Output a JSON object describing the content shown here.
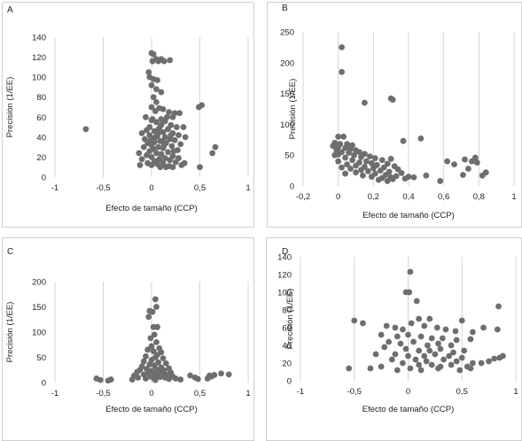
{
  "figure": {
    "panel_letters": [
      "A",
      "B",
      "C",
      "D"
    ]
  },
  "chart_data": [
    {
      "panel": "A",
      "type": "scatter",
      "xlabel": "Efecto de tamaño (CCP)",
      "ylabel": "Precisión (1/EE)",
      "xlim": [
        -1,
        1
      ],
      "ylim": [
        0,
        140
      ],
      "xticks": [
        -1,
        -0.5,
        0,
        0.5,
        1
      ],
      "xtick_labels": [
        "-1",
        "-0,5",
        "0",
        "0,5",
        "1"
      ],
      "yticks": [
        0,
        20,
        40,
        60,
        80,
        100,
        120,
        140
      ],
      "ytick_labels": [
        "0",
        "20",
        "40",
        "60",
        "80",
        "100",
        "120",
        "140"
      ],
      "grid": "vertical",
      "points": [
        [
          -0.68,
          48
        ],
        [
          0.0,
          124
        ],
        [
          0.02,
          123
        ],
        [
          0.05,
          118
        ],
        [
          0.1,
          118
        ],
        [
          0.19,
          117
        ],
        [
          0.01,
          116
        ],
        [
          0.07,
          116
        ],
        [
          0.13,
          116
        ],
        [
          -0.03,
          105
        ],
        [
          -0.02,
          100
        ],
        [
          0.02,
          98
        ],
        [
          0.06,
          97
        ],
        [
          0.0,
          92
        ],
        [
          0.05,
          88
        ],
        [
          0.1,
          85
        ],
        [
          0.02,
          80
        ],
        [
          0.05,
          75
        ],
        [
          0.0,
          70
        ],
        [
          0.08,
          69
        ],
        [
          0.12,
          68
        ],
        [
          0.04,
          66
        ],
        [
          0.18,
          65
        ],
        [
          0.24,
          64
        ],
        [
          0.29,
          64
        ],
        [
          0.22,
          60
        ],
        [
          0.1,
          58
        ],
        [
          0.0,
          57
        ],
        [
          0.14,
          56
        ],
        [
          0.05,
          55
        ],
        [
          0.2,
          52
        ],
        [
          0.26,
          50
        ],
        [
          -0.02,
          50
        ],
        [
          0.08,
          49
        ],
        [
          0.17,
          48
        ],
        [
          -0.05,
          47
        ],
        [
          0.03,
          46
        ],
        [
          0.12,
          45
        ],
        [
          0.22,
          44
        ],
        [
          -0.1,
          44
        ],
        [
          0.28,
          42
        ],
        [
          -0.02,
          42
        ],
        [
          0.06,
          41
        ],
        [
          0.14,
          40
        ],
        [
          0.0,
          39
        ],
        [
          0.19,
          38
        ],
        [
          -0.07,
          38
        ],
        [
          0.24,
          37
        ],
        [
          0.09,
          36
        ],
        [
          0.03,
          35
        ],
        [
          -0.04,
          34
        ],
        [
          0.15,
          34
        ],
        [
          0.3,
          33
        ],
        [
          0.0,
          32
        ],
        [
          0.21,
          31
        ],
        [
          0.07,
          30
        ],
        [
          -0.08,
          30
        ],
        [
          0.12,
          29
        ],
        [
          0.02,
          28
        ],
        [
          0.27,
          27
        ],
        [
          -0.02,
          26
        ],
        [
          0.17,
          25
        ],
        [
          0.05,
          24
        ],
        [
          0.1,
          23
        ],
        [
          -0.05,
          22
        ],
        [
          0.22,
          21
        ],
        [
          0.0,
          20
        ],
        [
          0.14,
          19
        ],
        [
          0.08,
          18
        ],
        [
          -0.1,
          18
        ],
        [
          0.19,
          17
        ],
        [
          0.03,
          16
        ],
        [
          0.25,
          15
        ],
        [
          -0.04,
          14
        ],
        [
          0.12,
          14
        ],
        [
          0.06,
          13
        ],
        [
          0.31,
          12
        ],
        [
          0.0,
          12
        ],
        [
          0.18,
          11
        ],
        [
          0.09,
          10
        ],
        [
          0.15,
          10
        ],
        [
          0.22,
          10
        ],
        [
          -0.13,
          24
        ],
        [
          -0.12,
          12
        ],
        [
          0.49,
          70
        ],
        [
          0.52,
          72
        ],
        [
          0.66,
          30
        ],
        [
          0.63,
          24
        ],
        [
          0.5,
          10
        ],
        [
          0.04,
          40
        ],
        [
          0.1,
          52
        ],
        [
          0.16,
          60
        ],
        [
          0.2,
          42
        ],
        [
          0.01,
          58
        ],
        [
          -0.06,
          60
        ],
        [
          0.33,
          50
        ],
        [
          0.35,
          40
        ],
        [
          0.11,
          36
        ],
        [
          0.07,
          44
        ],
        [
          0.13,
          32
        ],
        [
          0.23,
          26
        ],
        [
          0.28,
          19
        ],
        [
          0.34,
          14
        ],
        [
          -0.01,
          37
        ]
      ]
    },
    {
      "panel": "B",
      "type": "scatter",
      "xlabel": "Efecto de tamaño (CCP)",
      "ylabel": "Precisión (1/EE)",
      "xlim": [
        -0.2,
        1
      ],
      "ylim": [
        0,
        250
      ],
      "xticks": [
        -0.2,
        0,
        0.2,
        0.4,
        0.6,
        0.8,
        1
      ],
      "xtick_labels": [
        "-0,2",
        "0",
        "0,2",
        "0,4",
        "0,6",
        "0,8",
        "1"
      ],
      "yticks": [
        0,
        50,
        100,
        150,
        200,
        250
      ],
      "ytick_labels": [
        "0",
        "50",
        "100",
        "150",
        "200",
        "250"
      ],
      "grid": "vertical",
      "points": [
        [
          0.02,
          225
        ],
        [
          0.02,
          185
        ],
        [
          0.15,
          135
        ],
        [
          0.3,
          142
        ],
        [
          0.31,
          140
        ],
        [
          0.37,
          73
        ],
        [
          0.47,
          77
        ],
        [
          0.0,
          80
        ],
        [
          0.03,
          80
        ],
        [
          -0.02,
          70
        ],
        [
          0.01,
          68
        ],
        [
          0.05,
          68
        ],
        [
          0.08,
          66
        ],
        [
          -0.03,
          65
        ],
        [
          0.0,
          63
        ],
        [
          0.04,
          62
        ],
        [
          0.07,
          60
        ],
        [
          0.1,
          58
        ],
        [
          -0.01,
          58
        ],
        [
          0.12,
          55
        ],
        [
          0.02,
          55
        ],
        [
          0.06,
          54
        ],
        [
          0.15,
          52
        ],
        [
          0.0,
          51
        ],
        [
          0.09,
          50
        ],
        [
          -0.02,
          50
        ],
        [
          0.18,
          48
        ],
        [
          0.13,
          47
        ],
        [
          0.04,
          46
        ],
        [
          0.21,
          45
        ],
        [
          0.3,
          44
        ],
        [
          0.08,
          42
        ],
        [
          0.25,
          42
        ],
        [
          0.16,
          40
        ],
        [
          0.0,
          40
        ],
        [
          0.12,
          38
        ],
        [
          0.19,
          37
        ],
        [
          0.28,
          36
        ],
        [
          0.05,
          35
        ],
        [
          0.22,
          34
        ],
        [
          0.1,
          33
        ],
        [
          0.32,
          32
        ],
        [
          0.15,
          31
        ],
        [
          0.26,
          30
        ],
        [
          0.02,
          30
        ],
        [
          0.2,
          29
        ],
        [
          0.07,
          28
        ],
        [
          0.34,
          27
        ],
        [
          0.13,
          26
        ],
        [
          0.24,
          25
        ],
        [
          0.17,
          24
        ],
        [
          0.29,
          23
        ],
        [
          0.1,
          22
        ],
        [
          0.36,
          21
        ],
        [
          0.04,
          20
        ],
        [
          0.21,
          20
        ],
        [
          0.27,
          18
        ],
        [
          0.14,
          17
        ],
        [
          0.33,
          16
        ],
        [
          0.19,
          15
        ],
        [
          0.3,
          14
        ],
        [
          0.25,
          13
        ],
        [
          0.38,
          12
        ],
        [
          0.31,
          11
        ],
        [
          0.23,
          10
        ],
        [
          0.28,
          8
        ],
        [
          0.4,
          15
        ],
        [
          0.43,
          14
        ],
        [
          0.5,
          17
        ],
        [
          0.58,
          8
        ],
        [
          0.62,
          40
        ],
        [
          0.66,
          35
        ],
        [
          0.72,
          43
        ],
        [
          0.76,
          40
        ],
        [
          0.78,
          46
        ],
        [
          0.79,
          38
        ],
        [
          0.82,
          17
        ],
        [
          0.84,
          22
        ],
        [
          0.74,
          28
        ],
        [
          0.71,
          18
        ]
      ]
    },
    {
      "panel": "C",
      "type": "scatter",
      "xlabel": "Efecto de tamaño (CCP)",
      "ylabel": "Precisión (1/EE)",
      "xlim": [
        -1,
        1
      ],
      "ylim": [
        0,
        200
      ],
      "xticks": [
        -1,
        -0.5,
        0,
        0.5,
        1
      ],
      "xtick_labels": [
        "-1",
        "-0,5",
        "0",
        "0,5",
        "1"
      ],
      "yticks": [
        0,
        50,
        100,
        150,
        200
      ],
      "ytick_labels": [
        "0",
        "50",
        "100",
        "150",
        "200"
      ],
      "grid": "vertical",
      "points": [
        [
          0.04,
          165
        ],
        [
          0.05,
          150
        ],
        [
          -0.02,
          142
        ],
        [
          0.01,
          140
        ],
        [
          -0.03,
          130
        ],
        [
          0.02,
          110
        ],
        [
          0.06,
          110
        ],
        [
          0.03,
          95
        ],
        [
          -0.01,
          88
        ],
        [
          0.05,
          80
        ],
        [
          0.0,
          72
        ],
        [
          0.08,
          68
        ],
        [
          -0.04,
          65
        ],
        [
          0.02,
          62
        ],
        [
          0.1,
          60
        ],
        [
          0.06,
          55
        ],
        [
          -0.06,
          52
        ],
        [
          0.04,
          50
        ],
        [
          0.12,
          48
        ],
        [
          0.0,
          45
        ],
        [
          -0.08,
          42
        ],
        [
          0.07,
          40
        ],
        [
          0.15,
          38
        ],
        [
          -0.02,
          36
        ],
        [
          0.03,
          34
        ],
        [
          -0.1,
          32
        ],
        [
          0.1,
          30
        ],
        [
          0.18,
          28
        ],
        [
          -0.05,
          27
        ],
        [
          0.05,
          26
        ],
        [
          -0.12,
          25
        ],
        [
          0.13,
          24
        ],
        [
          0.0,
          23
        ],
        [
          0.08,
          22
        ],
        [
          -0.15,
          21
        ],
        [
          0.2,
          20
        ],
        [
          -0.03,
          19
        ],
        [
          0.03,
          18
        ],
        [
          0.11,
          17
        ],
        [
          -0.08,
          16
        ],
        [
          0.16,
          15
        ],
        [
          -0.18,
          14
        ],
        [
          0.06,
          13
        ],
        [
          -0.01,
          12
        ],
        [
          0.22,
          12
        ],
        [
          0.09,
          11
        ],
        [
          -0.14,
          10
        ],
        [
          0.14,
          10
        ],
        [
          0.02,
          9
        ],
        [
          -0.06,
          8
        ],
        [
          0.25,
          8
        ],
        [
          0.18,
          7
        ],
        [
          -0.2,
          6
        ],
        [
          0.3,
          6
        ],
        [
          0.04,
          5
        ],
        [
          -0.57,
          8
        ],
        [
          -0.53,
          5
        ],
        [
          -0.45,
          4
        ],
        [
          -0.42,
          6
        ],
        [
          0.4,
          14
        ],
        [
          0.45,
          10
        ],
        [
          0.48,
          7
        ],
        [
          0.58,
          8
        ],
        [
          0.6,
          14
        ],
        [
          0.62,
          12
        ],
        [
          0.65,
          15
        ],
        [
          0.72,
          18
        ],
        [
          0.8,
          16
        ]
      ]
    },
    {
      "panel": "D",
      "type": "scatter",
      "xlabel": "Efecto de tamaño (CCP)",
      "ylabel": "Precisión (1/EE)",
      "xlim": [
        -1,
        1
      ],
      "ylim": [
        0,
        140
      ],
      "xticks": [
        -1,
        -0.5,
        0,
        0.5,
        1
      ],
      "xtick_labels": [
        "-1",
        "-0,5",
        "0",
        "0,5",
        "1"
      ],
      "yticks": [
        0,
        20,
        40,
        60,
        80,
        100,
        120,
        140
      ],
      "ytick_labels": [
        "0",
        "20",
        "40",
        "60",
        "80",
        "100",
        "120",
        "140"
      ],
      "grid": "vertical",
      "points": [
        [
          0.02,
          123
        ],
        [
          -0.02,
          100
        ],
        [
          0.01,
          100
        ],
        [
          0.08,
          90
        ],
        [
          0.84,
          84
        ],
        [
          -0.5,
          68
        ],
        [
          -0.42,
          65
        ],
        [
          0.1,
          70
        ],
        [
          0.2,
          70
        ],
        [
          0.5,
          68
        ],
        [
          0.7,
          60
        ],
        [
          0.83,
          58
        ],
        [
          -0.2,
          62
        ],
        [
          -0.12,
          60
        ],
        [
          -0.05,
          58
        ],
        [
          0.03,
          65
        ],
        [
          0.15,
          62
        ],
        [
          0.27,
          60
        ],
        [
          0.35,
          58
        ],
        [
          0.44,
          56
        ],
        [
          0.6,
          55
        ],
        [
          -0.25,
          52
        ],
        [
          -0.1,
          50
        ],
        [
          0.0,
          52
        ],
        [
          0.12,
          50
        ],
        [
          0.22,
          48
        ],
        [
          0.32,
          48
        ],
        [
          0.45,
          46
        ],
        [
          0.58,
          47
        ],
        [
          -0.18,
          44
        ],
        [
          -0.07,
          42
        ],
        [
          0.05,
          44
        ],
        [
          0.18,
          40
        ],
        [
          0.28,
          42
        ],
        [
          0.4,
          40
        ],
        [
          -0.22,
          38
        ],
        [
          -0.02,
          36
        ],
        [
          0.1,
          34
        ],
        [
          0.2,
          34
        ],
        [
          0.3,
          36
        ],
        [
          0.42,
          32
        ],
        [
          0.52,
          34
        ],
        [
          -0.3,
          30
        ],
        [
          -0.12,
          30
        ],
        [
          0.0,
          28
        ],
        [
          0.15,
          28
        ],
        [
          0.25,
          30
        ],
        [
          0.38,
          28
        ],
        [
          0.5,
          26
        ],
        [
          -0.15,
          24
        ],
        [
          0.07,
          24
        ],
        [
          0.17,
          22
        ],
        [
          0.33,
          24
        ],
        [
          0.45,
          22
        ],
        [
          0.6,
          20
        ],
        [
          -0.05,
          20
        ],
        [
          0.1,
          18
        ],
        [
          0.22,
          18
        ],
        [
          0.3,
          16
        ],
        [
          0.4,
          18
        ],
        [
          0.55,
          16
        ],
        [
          0.68,
          20
        ],
        [
          0.75,
          22
        ],
        [
          0.85,
          26
        ],
        [
          0.8,
          25
        ],
        [
          0.88,
          28
        ],
        [
          -0.35,
          14
        ],
        [
          -0.25,
          16
        ],
        [
          -0.1,
          12
        ],
        [
          0.02,
          14
        ],
        [
          0.12,
          12
        ],
        [
          0.28,
          14
        ],
        [
          0.48,
          12
        ],
        [
          0.58,
          14
        ],
        [
          -0.55,
          14
        ]
      ]
    }
  ]
}
